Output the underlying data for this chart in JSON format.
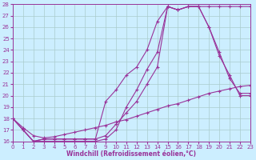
{
  "xlabel": "Windchill (Refroidissement éolien,°C)",
  "bg_color": "#cceeff",
  "grid_color": "#aacccc",
  "line_color": "#993399",
  "xmin": 0,
  "xmax": 23,
  "ymin": 16,
  "ymax": 28,
  "line1_x": [
    0,
    1,
    2,
    3,
    4,
    5,
    6,
    7,
    8,
    9,
    10,
    11,
    12,
    13,
    14,
    15,
    16,
    17,
    18,
    19,
    20,
    21,
    22,
    23
  ],
  "line1_y": [
    18,
    17,
    16,
    16.2,
    16.2,
    16.2,
    16.2,
    16.2,
    16.2,
    16.5,
    17.5,
    18.5,
    19.5,
    21.0,
    22.5,
    27.8,
    27.5,
    27.8,
    27.8,
    27.8,
    27.8,
    27.8,
    27.8,
    27.8
  ],
  "line2_x": [
    0,
    1,
    2,
    3,
    4,
    5,
    6,
    7,
    8,
    9,
    10,
    11,
    12,
    13,
    14,
    15,
    16,
    17,
    18,
    19,
    20,
    21,
    22,
    23
  ],
  "line2_y": [
    18,
    17,
    16,
    16.2,
    16.2,
    16.2,
    16.2,
    16.2,
    16.2,
    19.5,
    20.5,
    21.8,
    22.5,
    24.0,
    26.5,
    27.8,
    27.5,
    27.8,
    27.8,
    26.0,
    23.8,
    21.5,
    20.2,
    20.2
  ],
  "line3_x": [
    0,
    1,
    2,
    3,
    4,
    5,
    6,
    7,
    8,
    9,
    10,
    11,
    12,
    13,
    14,
    15,
    16,
    17,
    18,
    19,
    20,
    21,
    22,
    23
  ],
  "line3_y": [
    18,
    17,
    16,
    16.0,
    16.0,
    16.0,
    16.0,
    16.0,
    16.0,
    16.2,
    17.0,
    19.0,
    20.5,
    22.3,
    23.8,
    27.8,
    27.5,
    27.8,
    27.8,
    26.0,
    23.5,
    21.8,
    20.0,
    20.0
  ],
  "line4_x": [
    0,
    1,
    2,
    3,
    4,
    5,
    6,
    7,
    8,
    9,
    10,
    11,
    12,
    13,
    14,
    15,
    16,
    17,
    18,
    19,
    20,
    21,
    22,
    23
  ],
  "line4_y": [
    18,
    17.2,
    16.5,
    16.3,
    16.4,
    16.6,
    16.8,
    17.0,
    17.2,
    17.4,
    17.7,
    17.9,
    18.2,
    18.5,
    18.8,
    19.1,
    19.3,
    19.6,
    19.9,
    20.2,
    20.4,
    20.6,
    20.8,
    20.9
  ]
}
